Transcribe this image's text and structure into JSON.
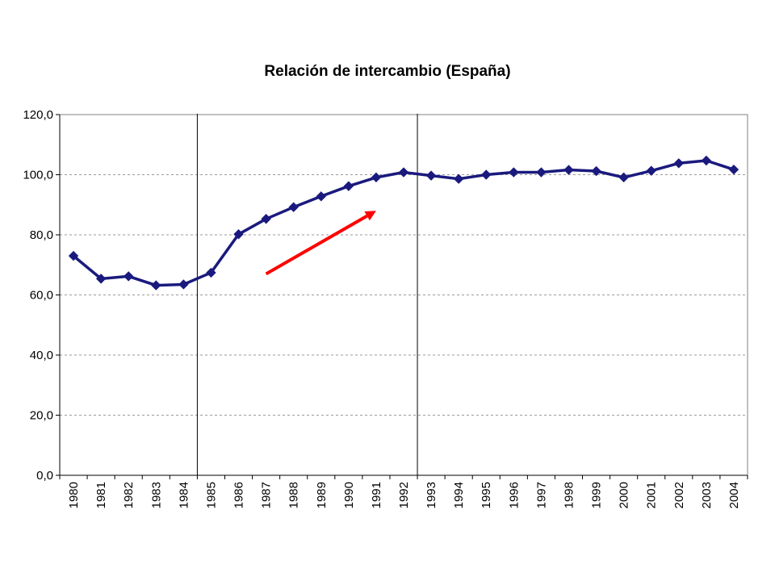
{
  "chart_data": {
    "type": "line",
    "title": "Relación de intercambio (España)",
    "xlabel": "",
    "ylabel": "",
    "categories": [
      "1980",
      "1981",
      "1982",
      "1983",
      "1984",
      "1985",
      "1986",
      "1987",
      "1988",
      "1989",
      "1990",
      "1991",
      "1992",
      "1993",
      "1994",
      "1995",
      "1996",
      "1997",
      "1998",
      "1999",
      "2000",
      "2001",
      "2002",
      "2003",
      "2004"
    ],
    "series": [
      {
        "values": [
          73.0,
          65.4,
          66.2,
          63.2,
          63.5,
          67.4,
          80.2,
          85.3,
          89.2,
          92.8,
          96.2,
          99.1,
          100.8,
          99.7,
          98.6,
          100.0,
          100.8,
          100.8,
          101.6,
          101.2,
          99.1,
          101.3,
          103.8,
          104.7,
          101.7
        ],
        "color": "#1a1a7e",
        "marker": "diamond"
      }
    ],
    "ylim": [
      0,
      120
    ],
    "yticks": [
      "0,0",
      "20,0",
      "40,0",
      "60,0",
      "80,0",
      "100,0",
      "120,0"
    ],
    "grid": "horizontal-dashed",
    "legend": "none",
    "vertical_markers": [
      "1984",
      "1992"
    ],
    "annotations": [
      {
        "type": "arrow",
        "color": "#ff0000",
        "from": {
          "x": "1987",
          "y": 67
        },
        "to": {
          "x": "1991",
          "y": 88
        }
      }
    ]
  }
}
